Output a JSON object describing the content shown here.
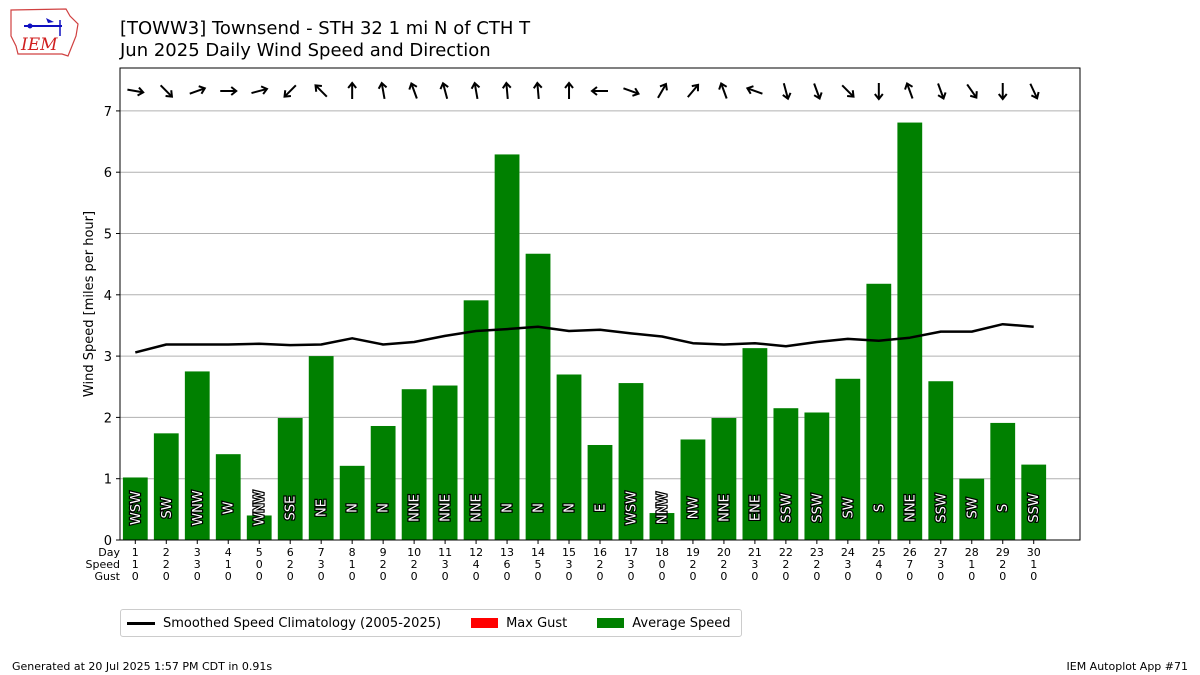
{
  "logo": {
    "text": "IEM",
    "icon": "iem-iowa-logo-icon"
  },
  "header": {
    "title_line1": "[TOWW3] Townsend - STH 32 1 mi N of CTH T",
    "title_line2": "Jun 2025 Daily Wind Speed and Direction"
  },
  "colors": {
    "avg": "#008000",
    "gust": "#ff0000",
    "clim": "#000000",
    "grid": "#b0b0b0"
  },
  "chart_data": {
    "type": "bar",
    "ylabel": "Wind Speed [miles per hour]",
    "ylim": [
      0,
      7.7
    ],
    "yticks": [
      0,
      1,
      2,
      3,
      4,
      5,
      6,
      7
    ],
    "grid": true,
    "row_labels": [
      "Day",
      "Speed",
      "Gust"
    ],
    "days": [
      1,
      2,
      3,
      4,
      5,
      6,
      7,
      8,
      9,
      10,
      11,
      12,
      13,
      14,
      15,
      16,
      17,
      18,
      19,
      20,
      21,
      22,
      23,
      24,
      25,
      26,
      27,
      28,
      29,
      30
    ],
    "speed_row": [
      1,
      2,
      3,
      1,
      0,
      2,
      3,
      1,
      2,
      2,
      3,
      4,
      6,
      5,
      3,
      2,
      3,
      0,
      2,
      2,
      3,
      2,
      2,
      3,
      4,
      7,
      3,
      1,
      2,
      1
    ],
    "gust_row": [
      0,
      0,
      0,
      0,
      0,
      0,
      0,
      0,
      0,
      0,
      0,
      0,
      0,
      0,
      0,
      0,
      0,
      0,
      0,
      0,
      0,
      0,
      0,
      0,
      0,
      0,
      0,
      0,
      0,
      0
    ],
    "directions": [
      "WSW",
      "SW",
      "WNW",
      "W",
      "WNW",
      "SSE",
      "NE",
      "N",
      "N",
      "NNE",
      "NNE",
      "NNE",
      "N",
      "N",
      "N",
      "E",
      "WSW",
      "NNW",
      "NW",
      "NNE",
      "ENE",
      "SSW",
      "SSW",
      "SW",
      "S",
      "NNE",
      "SSW",
      "SW",
      "S",
      "SSW"
    ],
    "arrow_angles": [
      260,
      225,
      290,
      270,
      285,
      135,
      45,
      0,
      10,
      20,
      15,
      10,
      5,
      5,
      0,
      90,
      250,
      330,
      320,
      20,
      70,
      195,
      200,
      225,
      180,
      20,
      200,
      215,
      180,
      205
    ],
    "series": [
      {
        "name": "Average Speed",
        "type": "bar",
        "values": [
          1.02,
          1.74,
          2.75,
          1.4,
          0.4,
          1.99,
          3.0,
          1.21,
          1.86,
          2.46,
          2.52,
          3.91,
          6.29,
          4.67,
          2.7,
          1.55,
          2.56,
          0.44,
          1.64,
          1.99,
          3.13,
          2.15,
          2.08,
          2.63,
          4.18,
          6.81,
          2.59,
          1.0,
          1.91,
          1.23
        ]
      },
      {
        "name": "Max Gust",
        "type": "bar",
        "values": [
          0,
          0,
          0,
          0,
          0,
          0,
          0,
          0,
          0,
          0,
          0,
          0,
          0,
          0,
          0,
          0,
          0,
          0,
          0,
          0,
          0,
          0,
          0,
          0,
          0,
          0,
          0,
          0,
          0,
          0
        ]
      },
      {
        "name": "Smoothed Speed Climatology (2005-2025)",
        "type": "line",
        "values": [
          3.06,
          3.19,
          3.19,
          3.19,
          3.2,
          3.18,
          3.19,
          3.29,
          3.19,
          3.23,
          3.33,
          3.41,
          3.44,
          3.48,
          3.41,
          3.43,
          3.37,
          3.32,
          3.21,
          3.19,
          3.21,
          3.16,
          3.23,
          3.28,
          3.25,
          3.3,
          3.4,
          3.4,
          3.52,
          3.48
        ]
      }
    ]
  },
  "footer": {
    "generated": "Generated at 20 Jul 2025 1:57 PM CDT in 0.91s",
    "app": "IEM Autoplot App #71"
  }
}
